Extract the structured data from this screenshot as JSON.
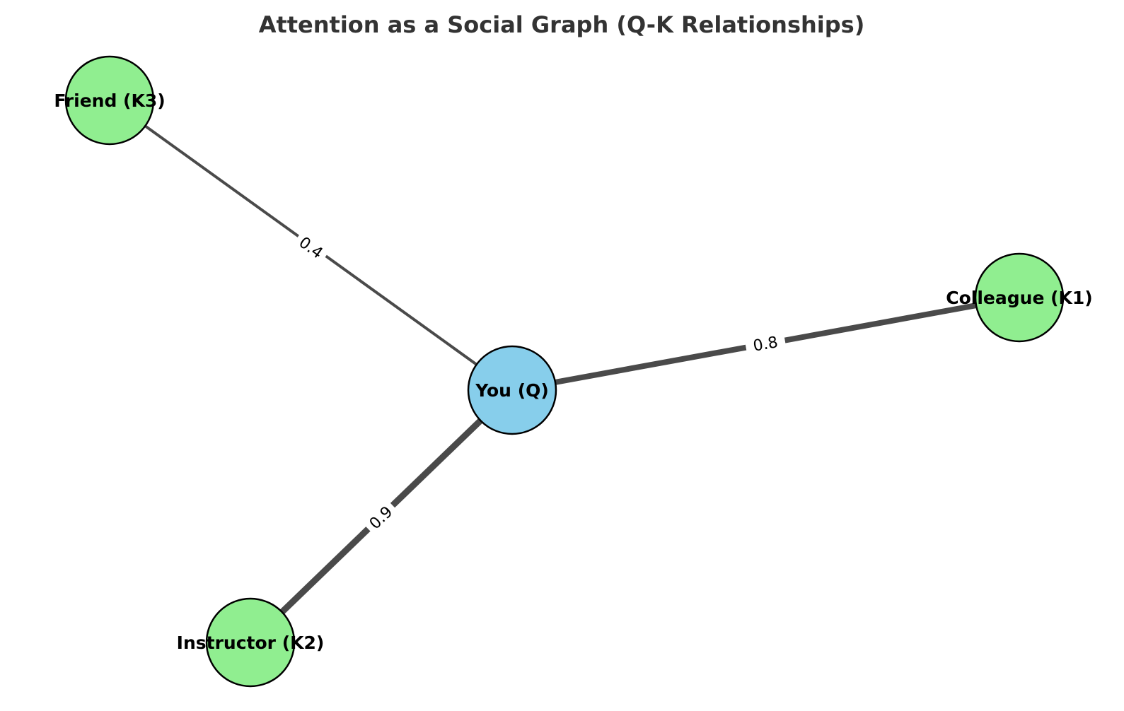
{
  "title": "Attention as a Social Graph (Q-K Relationships)",
  "colors": {
    "query_node": "#87ceeb",
    "key_node": "#90ee90",
    "edge": "#4a4a4a",
    "node_border": "#000000"
  },
  "nodes": {
    "you": {
      "label": "You (Q)",
      "role": "query"
    },
    "colleague": {
      "label": "Colleague (K1)",
      "role": "key"
    },
    "instructor": {
      "label": "Instructor (K2)",
      "role": "key"
    },
    "friend": {
      "label": "Friend (K3)",
      "role": "key"
    }
  },
  "edges": {
    "you_colleague": {
      "weight": 0.8,
      "label": "0.8"
    },
    "you_instructor": {
      "weight": 0.9,
      "label": "0.9"
    },
    "you_friend": {
      "weight": 0.4,
      "label": "0.4"
    }
  }
}
